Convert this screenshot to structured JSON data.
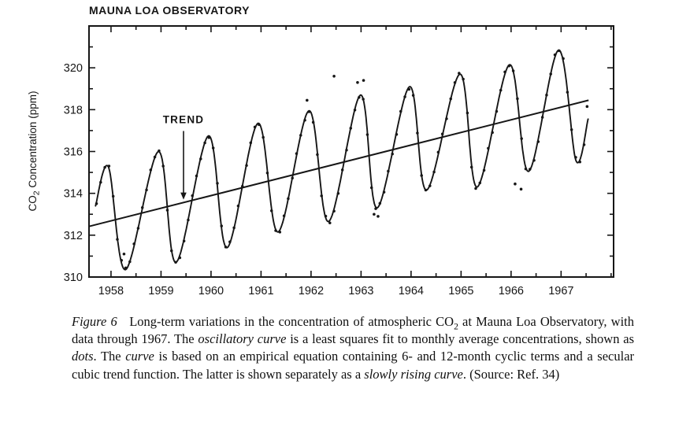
{
  "title": "MAUNA LOA OBSERVATORY",
  "axes": {
    "ylabel_segments": [
      {
        "t": "CO"
      },
      {
        "t": "2",
        "sub": true
      },
      {
        "t": " Concentration  (ppm)"
      }
    ]
  },
  "chart_data": {
    "type": "line",
    "title": "MAUNA LOA OBSERVATORY",
    "xlabel": "",
    "ylabel": "CO2 Concentration (ppm)",
    "xlim": [
      1958.06,
      1968.55
    ],
    "ylim": [
      310,
      322
    ],
    "grid": false,
    "legend": "none",
    "x_major_ticks_years": [
      1958,
      1959,
      1960,
      1961,
      1962,
      1963,
      1964,
      1965,
      1966,
      1967
    ],
    "x_minor_tick_step": 0.5,
    "y_major_ticks": [
      310,
      312,
      314,
      316,
      318,
      320
    ],
    "y_minor_tick_step": 1,
    "series": [
      {
        "name": "oscillatory least-squares fit (6- and 12-month cyclic terms)",
        "style": "spline",
        "keypoints": [
          [
            1958.19,
            313.4
          ],
          [
            1958.45,
            315.25
          ],
          [
            1958.79,
            310.35
          ],
          [
            1959.45,
            316.0
          ],
          [
            1959.8,
            310.7
          ],
          [
            1960.45,
            316.75
          ],
          [
            1960.82,
            311.4
          ],
          [
            1961.44,
            317.35
          ],
          [
            1961.84,
            312.15
          ],
          [
            1962.46,
            317.95
          ],
          [
            1962.85,
            312.65
          ],
          [
            1963.49,
            318.7
          ],
          [
            1963.82,
            313.3
          ],
          [
            1964.47,
            319.1
          ],
          [
            1964.81,
            314.15
          ],
          [
            1965.48,
            319.7
          ],
          [
            1965.82,
            314.3
          ],
          [
            1966.47,
            320.15
          ],
          [
            1966.85,
            315.05
          ],
          [
            1967.45,
            320.85
          ],
          [
            1967.8,
            315.55
          ],
          [
            1968.04,
            317.55
          ]
        ]
      },
      {
        "name": "secular cubic trend (slowly rising curve)",
        "style": "line",
        "points": [
          [
            1958.06,
            312.42
          ],
          [
            1968.05,
            318.45
          ]
        ]
      }
    ],
    "dots": {
      "label": "monthly average concentrations",
      "start": 1958.21,
      "end": 1968.04,
      "per_year": 12,
      "jitter_ppm": 0.13,
      "extra_points": [
        [
          1958.76,
          311.1
        ],
        [
          1962.42,
          318.45
        ],
        [
          1962.96,
          319.6
        ],
        [
          1963.43,
          319.3
        ],
        [
          1963.55,
          319.4
        ],
        [
          1963.76,
          313.0
        ],
        [
          1963.84,
          312.9
        ],
        [
          1966.58,
          314.45
        ],
        [
          1966.7,
          314.2
        ],
        [
          1968.02,
          318.15
        ]
      ]
    },
    "annotation": {
      "text": "TREND",
      "label_pos": [
        1959.95,
        317.35
      ],
      "arrow_from": [
        1959.95,
        316.98
      ],
      "arrow_tip": [
        1959.95,
        313.7
      ]
    }
  },
  "caption": {
    "segments": [
      {
        "t": "Figure 6",
        "italic": true
      },
      {
        "t": "   Long-term variations in the concentration of atmospheric CO"
      },
      {
        "t": "2",
        "sub": true
      },
      {
        "t": " at Mauna Loa Observatory, with data through 1967. The "
      },
      {
        "t": "oscillatory curve",
        "italic": true
      },
      {
        "t": " is a least squares fit to monthly average concentrations, shown as "
      },
      {
        "t": "dots",
        "italic": true
      },
      {
        "t": ". The "
      },
      {
        "t": "curve",
        "italic": true
      },
      {
        "t": " is based on an empirical equation containing 6- and 12-month cyclic terms and a secular cubic trend function. The latter is shown separately as a "
      },
      {
        "t": "slowly rising curve",
        "italic": true
      },
      {
        "t": ". (Source: Ref. 34)"
      }
    ]
  }
}
